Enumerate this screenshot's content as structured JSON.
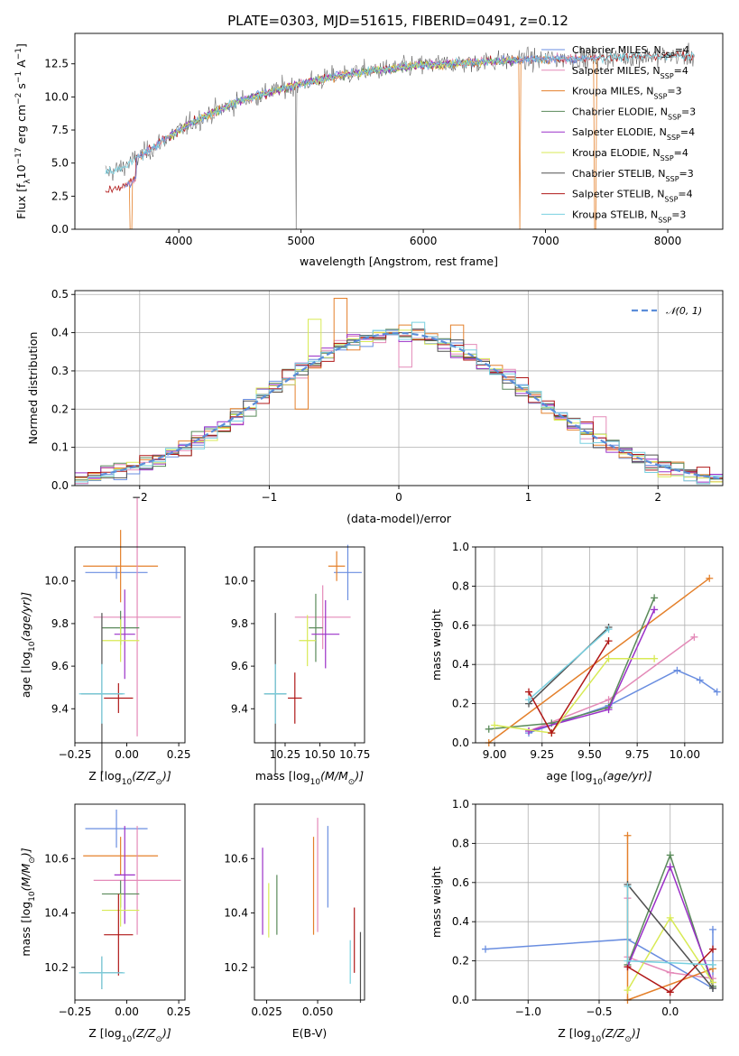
{
  "figure_title": "PLATE=0303, MJD=51615, FIBERID=0491, z=0.12",
  "colors": {
    "Chabrier MILES": "#6a8ee0",
    "Salpeter MILES": "#e48ab8",
    "Kroupa MILES": "#e4802b",
    "Chabrier ELODIE": "#5a8a5a",
    "Salpeter ELODIE": "#9b30c8",
    "Kroupa ELODIE": "#d8ea55",
    "Chabrier STELIB": "#505050",
    "Salpeter STELIB": "#b01818",
    "Kroupa STELIB": "#78d0e0"
  },
  "chart_data": [
    {
      "type": "line",
      "title": "PLATE=0303, MJD=51615, FIBERID=0491, z=0.12",
      "xlabel": "wavelength [Angstrom, rest frame]",
      "ylabel_main": "Flux [f",
      "ylabel_sub": "λ",
      "ylabel_rest": "10",
      "ylabel_exp1": "−17",
      "ylabel_mid": " erg cm",
      "ylabel_exp2": "−2",
      "ylabel_mid2": " s",
      "ylabel_exp3": "−1",
      "ylabel_mid3": " A",
      "ylabel_exp4": "−1",
      "ylabel_end": "]",
      "xlim": [
        3150,
        8450
      ],
      "ylim": [
        0,
        14.8
      ],
      "xticks": [
        4000,
        5000,
        6000,
        7000,
        8000
      ],
      "yticks": [
        0.0,
        2.5,
        5.0,
        7.5,
        10.0,
        12.5
      ],
      "ytick_labels": [
        "0.0",
        "2.5",
        "5.0",
        "7.5",
        "10.0",
        "12.5"
      ],
      "continuum_x": [
        3400,
        3500,
        3700,
        3900,
        4100,
        4300,
        4500,
        4800,
        5000,
        5300,
        5600,
        6000,
        6400,
        6800,
        7200,
        7600,
        8000,
        8200
      ],
      "continuum_y": [
        4.3,
        4.5,
        5.6,
        6.9,
        8.0,
        8.9,
        9.7,
        10.5,
        11.0,
        11.6,
        12.0,
        12.4,
        12.6,
        12.8,
        12.9,
        13.0,
        13.1,
        13.1
      ],
      "dropouts": [
        {
          "x": 4960,
          "series": "Chabrier STELIB"
        },
        {
          "x": 6790,
          "series": "Kroupa MILES"
        },
        {
          "x": 7410,
          "series": "Kroupa MILES"
        },
        {
          "x": 3610,
          "series": "Kroupa MILES"
        },
        {
          "x": 3920,
          "series": "Kroupa ELODIE"
        }
      ],
      "legend": [
        {
          "name": "Chabrier MILES",
          "label": "Chabrier MILES, N",
          "sub": "SSP",
          "value": "=4"
        },
        {
          "name": "Salpeter MILES",
          "label": "Salpeter MILES, N",
          "sub": "SSP",
          "value": "=4"
        },
        {
          "name": "Kroupa MILES",
          "label": "Kroupa MILES, N",
          "sub": "SSP",
          "value": "=3"
        },
        {
          "name": "Chabrier ELODIE",
          "label": "Chabrier ELODIE, N",
          "sub": "SSP",
          "value": "=3"
        },
        {
          "name": "Salpeter ELODIE",
          "label": "Salpeter ELODIE, N",
          "sub": "SSP",
          "value": "=4"
        },
        {
          "name": "Kroupa ELODIE",
          "label": "Kroupa ELODIE, N",
          "sub": "SSP",
          "value": "=4"
        },
        {
          "name": "Chabrier STELIB",
          "label": "Chabrier STELIB, N",
          "sub": "SSP",
          "value": "=3"
        },
        {
          "name": "Salpeter STELIB",
          "label": "Salpeter STELIB, N",
          "sub": "SSP",
          "value": "=4"
        },
        {
          "name": "Kroupa STELIB",
          "label": "Kroupa STELIB, N",
          "sub": "SSP",
          "value": "=3"
        }
      ]
    },
    {
      "type": "histogram",
      "xlabel": "(data-model)/error",
      "ylabel": "Normed distribution",
      "xlim": [
        -2.5,
        2.5
      ],
      "ylim": [
        0,
        0.51
      ],
      "xticks": [
        -2,
        -1,
        0,
        1,
        2
      ],
      "xtick_labels": [
        "−2",
        "−1",
        "0",
        "1",
        "2"
      ],
      "yticks": [
        0.0,
        0.1,
        0.2,
        0.3,
        0.4,
        0.5
      ],
      "ytick_labels": [
        "0.0",
        "0.1",
        "0.2",
        "0.3",
        "0.4",
        "0.5"
      ],
      "grid": true,
      "bin_width": 0.1,
      "bin_start": -2.5,
      "gaussian_legend": "𝒩(0, 1)",
      "notable_bins": [
        {
          "series": "Kroupa MILES",
          "x": -0.45,
          "y": 0.49
        },
        {
          "series": "Kroupa ELODIE",
          "x": -0.65,
          "y": 0.435
        },
        {
          "series": "Salpeter MILES",
          "x": 0.05,
          "y": 0.31
        },
        {
          "series": "Kroupa MILES",
          "x": 0.45,
          "y": 0.42
        },
        {
          "series": "Kroupa MILES",
          "x": -0.75,
          "y": 0.2
        },
        {
          "series": "Salpeter MILES",
          "x": 1.55,
          "y": 0.18
        }
      ]
    },
    {
      "type": "scatter",
      "xlabel": "Z [log",
      "xlabel_sub": "10",
      "xlabel_rest": "(Z/Z",
      "xlabel_sun": "⊙",
      "xlabel_end": ")]",
      "ylabel": "age  [log",
      "ylabel_sub": "10",
      "ylabel_rest": "(age/yr)]",
      "xlim": [
        -0.25,
        0.28
      ],
      "ylim": [
        9.24,
        10.16
      ],
      "xticks": [
        -0.25,
        0.0,
        0.25
      ],
      "xtick_labels": [
        "−0.25",
        "0.00",
        "0.25"
      ],
      "yticks": [
        9.4,
        9.6,
        9.8,
        10.0
      ],
      "ytick_labels": [
        "9.4",
        "9.6",
        "9.8",
        "10.0"
      ],
      "points": [
        {
          "series": "Chabrier MILES",
          "x": -0.05,
          "xerr": 0.15,
          "y": 10.04,
          "yerr": 0.03
        },
        {
          "series": "Kroupa MILES",
          "x": -0.03,
          "xerr": 0.18,
          "y": 10.07,
          "yerr": 0.17
        },
        {
          "series": "Salpeter MILES",
          "x": 0.05,
          "xerr": 0.21,
          "y": 9.83,
          "yerr": 0.56
        },
        {
          "series": "Chabrier ELODIE",
          "x": -0.03,
          "xerr": 0.09,
          "y": 9.78,
          "yerr": 0.08
        },
        {
          "series": "Salpeter ELODIE",
          "x": -0.01,
          "xerr": 0.05,
          "y": 9.75,
          "yerr": 0.21
        },
        {
          "series": "Kroupa ELODIE",
          "x": -0.03,
          "xerr": 0.09,
          "y": 9.72,
          "yerr": 0.1
        },
        {
          "series": "Chabrier STELIB",
          "x": -0.12,
          "xerr": 0.1,
          "y": 9.47,
          "yerr": 0.38
        },
        {
          "series": "Salpeter STELIB",
          "x": -0.04,
          "xerr": 0.07,
          "y": 9.45,
          "yerr": 0.07
        },
        {
          "series": "Kroupa STELIB",
          "x": -0.12,
          "xerr": 0.11,
          "y": 9.47,
          "yerr": 0.14
        }
      ]
    },
    {
      "type": "scatter",
      "xlabel": "mass [log",
      "xlabel_sub": "10",
      "xlabel_rest": "(M/M",
      "xlabel_sun": "⊙",
      "xlabel_end": ")]",
      "xlim": [
        10.03,
        10.82
      ],
      "ylim": [
        9.24,
        10.16
      ],
      "xticks": [
        10.25,
        10.5,
        10.75
      ],
      "xtick_labels": [
        "10.25",
        "10.50",
        "10.75"
      ],
      "yticks": [
        9.4,
        9.6,
        9.8,
        10.0
      ],
      "ytick_labels": [
        "9.4",
        "9.6",
        "9.8",
        "10.0"
      ],
      "points": [
        {
          "series": "Chabrier MILES",
          "x": 10.7,
          "xerr": 0.1,
          "y": 10.04,
          "yerr": 0.13
        },
        {
          "series": "Kroupa MILES",
          "x": 10.62,
          "xerr": 0.06,
          "y": 10.07,
          "yerr": 0.07
        },
        {
          "series": "Salpeter MILES",
          "x": 10.52,
          "xerr": 0.2,
          "y": 9.83,
          "yerr": 0.15
        },
        {
          "series": "Chabrier ELODIE",
          "x": 10.47,
          "xerr": 0.05,
          "y": 9.78,
          "yerr": 0.16
        },
        {
          "series": "Salpeter ELODIE",
          "x": 10.54,
          "xerr": 0.1,
          "y": 9.75,
          "yerr": 0.16
        },
        {
          "series": "Kroupa ELODIE",
          "x": 10.41,
          "xerr": 0.06,
          "y": 9.72,
          "yerr": 0.12
        },
        {
          "series": "Chabrier STELIB",
          "x": 10.18,
          "xerr": 0.08,
          "y": 9.47,
          "yerr": 0.38
        },
        {
          "series": "Salpeter STELIB",
          "x": 10.32,
          "xerr": 0.05,
          "y": 9.45,
          "yerr": 0.12
        },
        {
          "series": "Kroupa STELIB",
          "x": 10.18,
          "xerr": 0.08,
          "y": 9.47,
          "yerr": 0.14
        }
      ]
    },
    {
      "type": "line",
      "xlabel": "age  [log",
      "xlabel_sub": "10",
      "xlabel_rest": "(age/yr)]",
      "ylabel": "mass weight",
      "xlim": [
        8.9,
        10.2
      ],
      "ylim": [
        0,
        1.0
      ],
      "xticks": [
        9.0,
        9.25,
        9.5,
        9.75,
        10.0
      ],
      "xtick_labels": [
        "9.00",
        "9.25",
        "9.50",
        "9.75",
        "10.00"
      ],
      "yticks": [
        0.0,
        0.2,
        0.4,
        0.6,
        0.8,
        1.0
      ],
      "ytick_labels": [
        "0.0",
        "0.2",
        "0.4",
        "0.6",
        "0.8",
        "1.0"
      ],
      "grid": true,
      "series": [
        {
          "name": "Chabrier MILES",
          "x": [
            9.18,
            9.6,
            9.96,
            10.08,
            10.17
          ],
          "y": [
            0.05,
            0.19,
            0.37,
            0.32,
            0.26
          ]
        },
        {
          "name": "Salpeter MILES",
          "x": [
            9.18,
            9.6,
            10.05
          ],
          "y": [
            0.06,
            0.22,
            0.54
          ]
        },
        {
          "name": "Kroupa MILES",
          "x": [
            8.97,
            10.13
          ],
          "y": [
            0.0,
            0.84
          ]
        },
        {
          "name": "Chabrier ELODIE",
          "x": [
            8.97,
            9.3,
            9.6,
            9.84
          ],
          "y": [
            0.07,
            0.1,
            0.18,
            0.74
          ]
        },
        {
          "name": "Salpeter ELODIE",
          "x": [
            9.18,
            9.6,
            9.84
          ],
          "y": [
            0.06,
            0.17,
            0.68
          ]
        },
        {
          "name": "Kroupa ELODIE",
          "x": [
            9.0,
            9.3,
            9.6,
            9.84
          ],
          "y": [
            0.09,
            0.05,
            0.43,
            0.43
          ]
        },
        {
          "name": "Chabrier STELIB",
          "x": [
            9.18,
            9.6
          ],
          "y": [
            0.2,
            0.59
          ]
        },
        {
          "name": "Salpeter STELIB",
          "x": [
            9.18,
            9.3,
            9.6
          ],
          "y": [
            0.26,
            0.05,
            0.52
          ]
        },
        {
          "name": "Kroupa STELIB",
          "x": [
            9.18,
            9.6
          ],
          "y": [
            0.22,
            0.58
          ]
        }
      ]
    },
    {
      "type": "scatter",
      "xlabel": "Z [log",
      "xlabel_sub": "10",
      "xlabel_rest": "(Z/Z",
      "xlabel_sun": "⊙",
      "xlabel_end": ")]",
      "ylabel": "mass [log",
      "ylabel_sub": "10",
      "ylabel_rest": "(M/M",
      "ylabel_sun": "⊙",
      "ylabel_end": ")]",
      "xlim": [
        -0.25,
        0.28
      ],
      "ylim": [
        10.08,
        10.8
      ],
      "xticks": [
        -0.25,
        0.0,
        0.25
      ],
      "xtick_labels": [
        "−0.25",
        "0.00",
        "0.25"
      ],
      "yticks": [
        10.2,
        10.4,
        10.6
      ],
      "ytick_labels": [
        "10.2",
        "10.4",
        "10.6"
      ],
      "points": [
        {
          "series": "Chabrier MILES",
          "x": -0.05,
          "xerr": 0.15,
          "y": 10.71,
          "yerr": 0.07
        },
        {
          "series": "Kroupa MILES",
          "x": -0.03,
          "xerr": 0.18,
          "y": 10.61,
          "yerr": 0.07
        },
        {
          "series": "Salpeter MILES",
          "x": 0.05,
          "xerr": 0.21,
          "y": 10.52,
          "yerr": 0.2
        },
        {
          "series": "Chabrier ELODIE",
          "x": -0.03,
          "xerr": 0.09,
          "y": 10.47,
          "yerr": 0.05
        },
        {
          "series": "Salpeter ELODIE",
          "x": -0.01,
          "xerr": 0.05,
          "y": 10.54,
          "yerr": 0.18
        },
        {
          "series": "Kroupa ELODIE",
          "x": -0.03,
          "xerr": 0.09,
          "y": 10.41,
          "yerr": 0.06
        },
        {
          "series": "Chabrier STELIB",
          "x": -0.12,
          "xerr": 0.1,
          "y": 10.18,
          "yerr": 0.06
        },
        {
          "series": "Salpeter STELIB",
          "x": -0.04,
          "xerr": 0.07,
          "y": 10.32,
          "yerr": 0.15
        },
        {
          "series": "Kroupa STELIB",
          "x": -0.12,
          "xerr": 0.11,
          "y": 10.18,
          "yerr": 0.06
        }
      ]
    },
    {
      "type": "scatter",
      "xlabel": "E(B-V)",
      "xlim": [
        0.019,
        0.073
      ],
      "ylim": [
        10.08,
        10.8
      ],
      "xticks": [
        0.025,
        0.05
      ],
      "xtick_labels": [
        "0.025",
        "0.050"
      ],
      "yticks": [
        10.2,
        10.4,
        10.6
      ],
      "ytick_labels": [
        "10.2",
        "10.4",
        "10.6"
      ],
      "points": [
        {
          "series": "Chabrier MILES",
          "x": 0.055,
          "y": 10.57,
          "yerr": 0.15
        },
        {
          "series": "Salpeter MILES",
          "x": 0.05,
          "y": 10.54,
          "yerr": 0.21
        },
        {
          "series": "Kroupa MILES",
          "x": 0.048,
          "y": 10.5,
          "yerr": 0.18
        },
        {
          "series": "Chabrier ELODIE",
          "x": 0.03,
          "y": 10.43,
          "yerr": 0.11
        },
        {
          "series": "Salpeter ELODIE",
          "x": 0.023,
          "y": 10.48,
          "yerr": 0.16
        },
        {
          "series": "Kroupa ELODIE",
          "x": 0.026,
          "y": 10.41,
          "yerr": 0.1
        },
        {
          "series": "Chabrier STELIB",
          "x": 0.071,
          "y": 10.2,
          "yerr": 0.13
        },
        {
          "series": "Salpeter STELIB",
          "x": 0.068,
          "y": 10.3,
          "yerr": 0.12
        },
        {
          "series": "Kroupa STELIB",
          "x": 0.066,
          "y": 10.22,
          "yerr": 0.08
        }
      ]
    },
    {
      "type": "line",
      "xlabel": "Z [log",
      "xlabel_sub": "10",
      "xlabel_rest": "(Z/Z",
      "xlabel_sun": "⊙",
      "xlabel_end": ")]",
      "ylabel": "mass weight",
      "xlim": [
        -1.37,
        0.37
      ],
      "ylim": [
        0,
        1.0
      ],
      "xticks": [
        -1.0,
        -0.5,
        0.0
      ],
      "xtick_labels": [
        "−1.0",
        "−0.5",
        "0.0"
      ],
      "yticks": [
        0.0,
        0.2,
        0.4,
        0.6,
        0.8,
        1.0
      ],
      "ytick_labels": [
        "0.0",
        "0.2",
        "0.4",
        "0.6",
        "0.8",
        "1.0"
      ],
      "grid": true,
      "series": [
        {
          "name": "Chabrier MILES",
          "x": [
            -1.3,
            -0.3,
            0.3,
            0.3
          ],
          "y": [
            0.26,
            0.31,
            0.06,
            0.36
          ]
        },
        {
          "name": "Salpeter MILES",
          "x": [
            -0.3,
            -0.3,
            0.0,
            0.3
          ],
          "y": [
            0.52,
            0.22,
            0.14,
            0.11
          ]
        },
        {
          "name": "Kroupa MILES",
          "x": [
            -0.3,
            -0.3,
            0.3
          ],
          "y": [
            0.84,
            0.0,
            0.16
          ]
        },
        {
          "name": "Chabrier ELODIE",
          "x": [
            -0.3,
            0.0,
            0.3
          ],
          "y": [
            0.18,
            0.74,
            0.07
          ]
        },
        {
          "name": "Salpeter ELODIE",
          "x": [
            -0.3,
            0.0,
            0.3
          ],
          "y": [
            0.17,
            0.68,
            0.09
          ]
        },
        {
          "name": "Kroupa ELODIE",
          "x": [
            -0.3,
            0.0,
            0.3
          ],
          "y": [
            0.05,
            0.42,
            0.09
          ]
        },
        {
          "name": "Chabrier STELIB",
          "x": [
            -0.3,
            0.3
          ],
          "y": [
            0.59,
            0.06
          ]
        },
        {
          "name": "Salpeter STELIB",
          "x": [
            -0.3,
            0.0,
            0.3
          ],
          "y": [
            0.17,
            0.04,
            0.26
          ]
        },
        {
          "name": "Kroupa STELIB",
          "x": [
            -0.3,
            -0.3,
            0.3
          ],
          "y": [
            0.58,
            0.2,
            0.18
          ]
        }
      ]
    }
  ]
}
